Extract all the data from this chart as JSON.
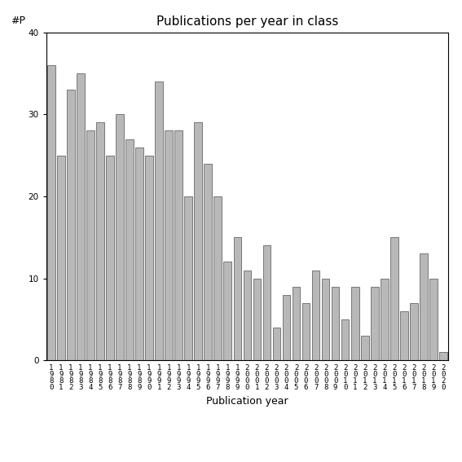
{
  "title": "Publications per year in class",
  "xlabel": "Publication year",
  "ylabel": "#P",
  "ylim": [
    0,
    40
  ],
  "yticks": [
    0,
    10,
    20,
    30,
    40
  ],
  "bar_color": "#b8b8b8",
  "bar_edgecolor": "#505050",
  "background_color": "#ffffff",
  "years": [
    "1980",
    "1981",
    "1982",
    "1983",
    "1984",
    "1985",
    "1986",
    "1987",
    "1988",
    "1989",
    "1990",
    "1991",
    "1992",
    "1993",
    "1994",
    "1995",
    "1996",
    "1997",
    "1998",
    "1999",
    "2000",
    "2001",
    "2002",
    "2003",
    "2004",
    "2005",
    "2006",
    "2007",
    "2008",
    "2009",
    "2010",
    "2011",
    "2012",
    "2013",
    "2014",
    "2015",
    "2016",
    "2017",
    "2018",
    "2019",
    "2020"
  ],
  "values": [
    36,
    25,
    33,
    35,
    28,
    29,
    25,
    30,
    27,
    26,
    25,
    34,
    28,
    28,
    20,
    29,
    24,
    20,
    12,
    15,
    11,
    10,
    14,
    4,
    8,
    9,
    7,
    11,
    10,
    9,
    5,
    9,
    3,
    9,
    10,
    15,
    6,
    7,
    13,
    10,
    1
  ],
  "title_fontsize": 11,
  "label_fontsize": 9,
  "tick_fontsize": 6.5
}
